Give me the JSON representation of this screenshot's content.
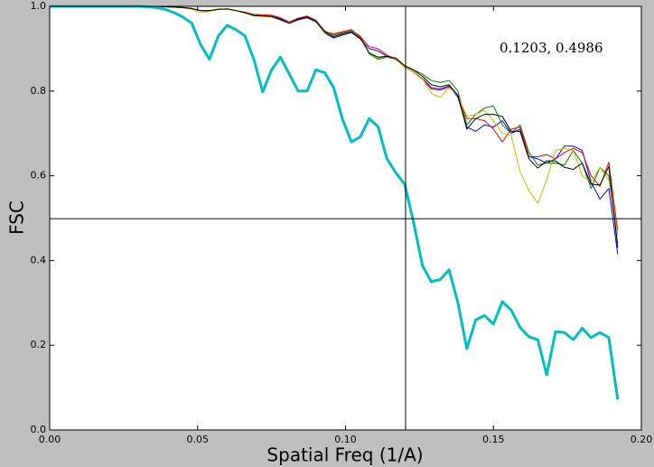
{
  "chart_data": {
    "type": "line",
    "xlabel": "Spatial Freq (1/A)",
    "ylabel": "FSC",
    "annotation": "0.1203, 0.4986",
    "crosshair": {
      "x": 0.1203,
      "y": 0.4986
    },
    "xlim": [
      0,
      0.2
    ],
    "ylim": [
      0,
      1
    ],
    "xticks": [
      {
        "value": 0,
        "label": "0.00"
      },
      {
        "value": 0.05,
        "label": "0.05"
      },
      {
        "value": 0.1,
        "label": "0.10"
      },
      {
        "value": 0.15,
        "label": "0.15"
      },
      {
        "value": 0.2,
        "label": "0.20"
      }
    ],
    "yticks": [
      {
        "value": 0,
        "label": "0.0"
      },
      0.2,
      0.4,
      0.6,
      0.8,
      {
        "value": 1,
        "label": "1.0"
      }
    ],
    "x": [
      0,
      0.003,
      0.006,
      0.009,
      0.012,
      0.015,
      0.018,
      0.021,
      0.024,
      0.027,
      0.03,
      0.033,
      0.036,
      0.039,
      0.042,
      0.045,
      0.048,
      0.051,
      0.054,
      0.057,
      0.06,
      0.063,
      0.066,
      0.069,
      0.072,
      0.075,
      0.078,
      0.081,
      0.084,
      0.087,
      0.09,
      0.093,
      0.096,
      0.099,
      0.102,
      0.105,
      0.108,
      0.111,
      0.114,
      0.117,
      0.12,
      0.123,
      0.126,
      0.129,
      0.132,
      0.135,
      0.138,
      0.141,
      0.144,
      0.147,
      0.15,
      0.153,
      0.156,
      0.159,
      0.162,
      0.165,
      0.168,
      0.171,
      0.174,
      0.177,
      0.18,
      0.183,
      0.186,
      0.189,
      0.192
    ],
    "series": [
      {
        "color": "#0000ff",
        "width": 1,
        "values": [
          1,
          1,
          1,
          1,
          1,
          1,
          1,
          1,
          1,
          1,
          1,
          1,
          1,
          0.999,
          0.998,
          0.997,
          0.995,
          0.99,
          0.99,
          0.993,
          0.994,
          0.99,
          0.985,
          0.978,
          0.977,
          0.975,
          0.968,
          0.96,
          0.968,
          0.973,
          0.963,
          0.937,
          0.925,
          0.932,
          0.938,
          0.923,
          0.9,
          0.895,
          0.882,
          0.876,
          0.858,
          0.846,
          0.83,
          0.808,
          0.805,
          0.812,
          0.785,
          0.715,
          0.705,
          0.72,
          0.715,
          0.73,
          0.7,
          0.71,
          0.645,
          0.64,
          0.63,
          0.64,
          0.67,
          0.67,
          0.66,
          0.585,
          0.545,
          0.57,
          0.415
        ]
      },
      {
        "color": "#008000",
        "width": 1,
        "values": [
          1,
          1,
          1,
          1,
          1,
          1,
          1,
          1,
          1,
          1,
          1,
          1,
          1,
          0.999,
          0.998,
          0.997,
          0.995,
          0.99,
          0.99,
          0.993,
          0.994,
          0.99,
          0.986,
          0.98,
          0.978,
          0.977,
          0.972,
          0.962,
          0.971,
          0.976,
          0.966,
          0.942,
          0.932,
          0.938,
          0.943,
          0.93,
          0.888,
          0.875,
          0.88,
          0.875,
          0.86,
          0.85,
          0.84,
          0.825,
          0.82,
          0.825,
          0.8,
          0.72,
          0.745,
          0.76,
          0.765,
          0.72,
          0.7,
          0.72,
          0.655,
          0.625,
          0.63,
          0.63,
          0.625,
          0.66,
          0.63,
          0.57,
          0.62,
          0.6,
          0.44
        ]
      },
      {
        "color": "#ff0000",
        "width": 1,
        "values": [
          1,
          1,
          1,
          1,
          1,
          1,
          1,
          1,
          1,
          1,
          1,
          1,
          1,
          0.999,
          0.998,
          0.997,
          0.995,
          0.99,
          0.99,
          0.993,
          0.994,
          0.99,
          0.986,
          0.981,
          0.98,
          0.979,
          0.973,
          0.963,
          0.972,
          0.977,
          0.967,
          0.94,
          0.935,
          0.94,
          0.945,
          0.928,
          0.905,
          0.9,
          0.885,
          0.875,
          0.857,
          0.845,
          0.828,
          0.805,
          0.802,
          0.81,
          0.79,
          0.735,
          0.735,
          0.73,
          0.71,
          0.68,
          0.71,
          0.715,
          0.645,
          0.645,
          0.65,
          0.64,
          0.655,
          0.665,
          0.655,
          0.6,
          0.575,
          0.632,
          0.47
        ]
      },
      {
        "color": "#bfbf00",
        "width": 1,
        "values": [
          1,
          1,
          1,
          1,
          1,
          1,
          1,
          1,
          1,
          1,
          1,
          1,
          1,
          0.999,
          0.998,
          0.996,
          0.993,
          0.985,
          0.988,
          0.992,
          0.993,
          0.989,
          0.984,
          0.978,
          0.976,
          0.975,
          0.97,
          0.961,
          0.97,
          0.975,
          0.964,
          0.938,
          0.93,
          0.936,
          0.94,
          0.925,
          0.89,
          0.878,
          0.881,
          0.877,
          0.858,
          0.846,
          0.83,
          0.795,
          0.785,
          0.808,
          0.79,
          0.74,
          0.745,
          0.755,
          0.73,
          0.7,
          0.695,
          0.61,
          0.565,
          0.535,
          0.59,
          0.66,
          0.665,
          0.66,
          0.6,
          0.585,
          0.62,
          0.59,
          0.46
        ]
      },
      {
        "color": "#000000",
        "width": 1,
        "values": [
          1,
          1,
          1,
          1,
          1,
          1,
          1,
          1,
          1,
          1,
          1,
          1,
          1,
          0.999,
          0.998,
          0.997,
          0.995,
          0.99,
          0.99,
          0.993,
          0.994,
          0.99,
          0.985,
          0.978,
          0.977,
          0.976,
          0.97,
          0.96,
          0.97,
          0.975,
          0.965,
          0.94,
          0.928,
          0.935,
          0.94,
          0.925,
          0.89,
          0.88,
          0.882,
          0.878,
          0.86,
          0.85,
          0.835,
          0.815,
          0.81,
          0.815,
          0.79,
          0.71,
          0.735,
          0.745,
          0.745,
          0.74,
          0.705,
          0.705,
          0.64,
          0.618,
          0.635,
          0.635,
          0.62,
          0.615,
          0.63,
          0.58,
          0.578,
          0.622,
          0.43
        ]
      },
      {
        "color": "#00bfbf",
        "width": 3,
        "values": [
          1,
          1,
          1,
          1,
          1,
          1,
          1,
          1,
          1,
          1,
          1,
          0.999,
          0.997,
          0.993,
          0.985,
          0.975,
          0.96,
          0.91,
          0.875,
          0.93,
          0.955,
          0.945,
          0.93,
          0.875,
          0.798,
          0.85,
          0.88,
          0.84,
          0.8,
          0.8,
          0.85,
          0.843,
          0.808,
          0.733,
          0.68,
          0.692,
          0.735,
          0.716,
          0.64,
          0.607,
          0.58,
          0.49,
          0.388,
          0.35,
          0.355,
          0.378,
          0.3,
          0.192,
          0.26,
          0.27,
          0.25,
          0.303,
          0.283,
          0.242,
          0.22,
          0.213,
          0.13,
          0.232,
          0.23,
          0.213,
          0.24,
          0.218,
          0.23,
          0.218,
          0.072
        ]
      }
    ]
  }
}
